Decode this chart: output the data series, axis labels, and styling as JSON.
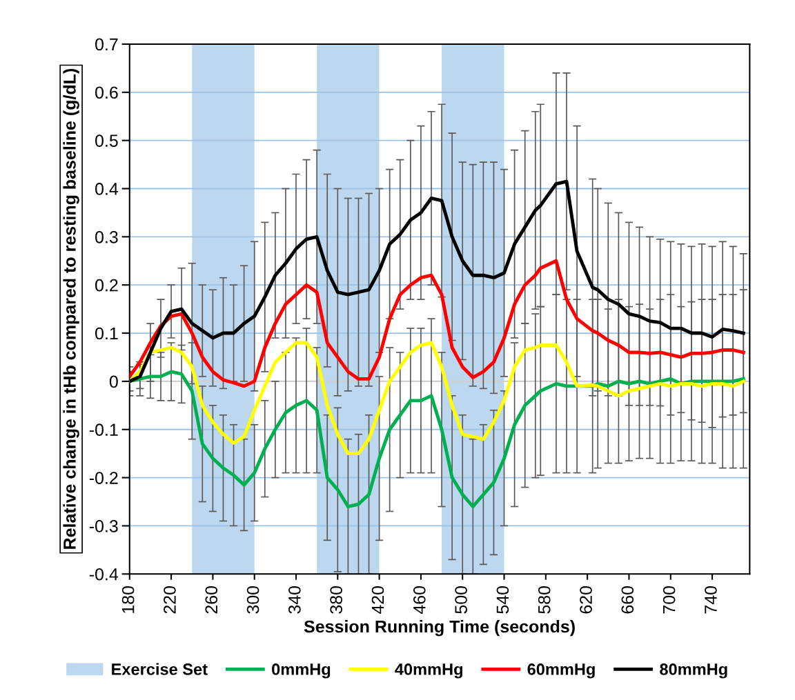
{
  "chart_data": {
    "type": "line",
    "xlabel": "Session Running Time (seconds)",
    "ylabel": "Relative change in tHb compared to resting baseline (g/dL)",
    "x": [
      180,
      190,
      200,
      210,
      220,
      230,
      240,
      250,
      260,
      270,
      280,
      290,
      300,
      310,
      320,
      330,
      340,
      350,
      360,
      370,
      380,
      390,
      400,
      410,
      420,
      430,
      440,
      450,
      460,
      470,
      480,
      490,
      500,
      510,
      520,
      530,
      540,
      550,
      560,
      570,
      575,
      590,
      600,
      610,
      625,
      630,
      640,
      650,
      660,
      670,
      680,
      690,
      700,
      710,
      720,
      730,
      740,
      750,
      760,
      770
    ],
    "xlim": [
      180,
      776
    ],
    "xticks": [
      180,
      220,
      260,
      300,
      340,
      380,
      420,
      460,
      500,
      540,
      580,
      620,
      660,
      700,
      740
    ],
    "ylim": [
      -0.4,
      0.7
    ],
    "yticks": [
      {
        "value": -0.4,
        "label": "-0.4"
      },
      {
        "value": -0.3,
        "label": "-0.3"
      },
      {
        "value": -0.2,
        "label": "-0.2"
      },
      {
        "value": -0.1,
        "label": "-0.1"
      },
      0,
      0.1,
      0.2,
      0.3,
      0.4,
      0.5,
      0.6,
      0.7
    ],
    "grid": "y",
    "legend": "bottom",
    "marker": "none",
    "line_style": "solid",
    "bands": [
      {
        "axis": "x",
        "from": 240,
        "to": 300,
        "label": "Exercise Set",
        "color": "#bdd7ee"
      },
      {
        "axis": "x",
        "from": 360,
        "to": 420,
        "color": "#bdd7ee"
      },
      {
        "axis": "x",
        "from": 480,
        "to": 540,
        "color": "#bdd7ee"
      }
    ],
    "series": [
      {
        "name": "0mmHg",
        "color": "#00b050",
        "values": [
          0.0,
          0.005,
          0.01,
          0.01,
          0.02,
          0.015,
          -0.02,
          -0.13,
          -0.16,
          -0.18,
          -0.195,
          -0.215,
          -0.19,
          -0.14,
          -0.1,
          -0.065,
          -0.05,
          -0.04,
          -0.06,
          -0.2,
          -0.225,
          -0.26,
          -0.255,
          -0.235,
          -0.16,
          -0.1,
          -0.07,
          -0.04,
          -0.04,
          -0.03,
          -0.1,
          -0.2,
          -0.235,
          -0.26,
          -0.235,
          -0.21,
          -0.16,
          -0.09,
          -0.05,
          -0.03,
          -0.02,
          -0.005,
          -0.01,
          -0.01,
          -0.01,
          -0.005,
          -0.01,
          0.0,
          -0.005,
          0.0,
          -0.005,
          0.0,
          0.005,
          -0.005,
          0.0,
          0.0,
          0.0,
          0.0,
          0.0,
          0.005
        ],
        "errors": [
          0.03,
          0.035,
          0.045,
          0.05,
          0.06,
          0.06,
          0.1,
          0.12,
          0.11,
          0.11,
          0.105,
          0.095,
          0.1,
          0.1,
          0.1,
          0.125,
          0.14,
          0.15,
          0.13,
          0.13,
          0.17,
          0.14,
          0.145,
          0.165,
          0.17,
          0.17,
          0.13,
          0.15,
          0.15,
          0.16,
          0.16,
          0.17,
          0.165,
          0.14,
          0.145,
          0.15,
          0.14,
          0.17,
          0.17,
          0.17,
          0.175,
          0.185,
          0.18,
          0.18,
          0.18,
          0.175,
          0.16,
          0.17,
          0.16,
          0.16,
          0.155,
          0.17,
          0.175,
          0.16,
          0.165,
          0.17,
          0.17,
          0.18,
          0.18,
          0.185
        ]
      },
      {
        "name": "40mmHg",
        "color": "#ffff00",
        "values": [
          0.0,
          0.02,
          0.06,
          0.065,
          0.07,
          0.06,
          0.03,
          -0.05,
          -0.085,
          -0.11,
          -0.128,
          -0.115,
          -0.06,
          -0.01,
          0.04,
          0.06,
          0.08,
          0.08,
          0.05,
          -0.05,
          -0.11,
          -0.15,
          -0.15,
          -0.12,
          -0.06,
          0.0,
          0.03,
          0.06,
          0.075,
          0.08,
          0.03,
          -0.05,
          -0.11,
          -0.115,
          -0.12,
          -0.085,
          -0.04,
          0.03,
          0.065,
          0.07,
          0.075,
          0.075,
          0.04,
          -0.01,
          -0.008,
          -0.01,
          -0.02,
          -0.03,
          -0.02,
          -0.015,
          -0.01,
          -0.005,
          -0.01,
          -0.005,
          -0.005,
          -0.01,
          -0.005,
          -0.005,
          -0.01,
          0.0
        ]
      },
      {
        "name": "60mmHg",
        "color": "#ff0000",
        "values": [
          0.01,
          0.04,
          0.08,
          0.115,
          0.135,
          0.14,
          0.1,
          0.05,
          0.02,
          0.003,
          -0.003,
          -0.01,
          0.0,
          0.07,
          0.12,
          0.16,
          0.18,
          0.2,
          0.185,
          0.08,
          0.05,
          0.02,
          0.005,
          0.005,
          0.05,
          0.13,
          0.18,
          0.2,
          0.215,
          0.22,
          0.18,
          0.07,
          0.03,
          0.008,
          0.02,
          0.04,
          0.09,
          0.16,
          0.2,
          0.22,
          0.235,
          0.25,
          0.17,
          0.13,
          0.105,
          0.1,
          0.085,
          0.075,
          0.06,
          0.06,
          0.058,
          0.06,
          0.055,
          0.05,
          0.058,
          0.058,
          0.06,
          0.065,
          0.065,
          0.06
        ]
      },
      {
        "name": "80mmHg",
        "color": "#000000",
        "values": [
          0.0,
          0.01,
          0.06,
          0.11,
          0.145,
          0.15,
          0.12,
          0.105,
          0.09,
          0.1,
          0.1,
          0.12,
          0.135,
          0.175,
          0.22,
          0.245,
          0.275,
          0.295,
          0.3,
          0.23,
          0.185,
          0.18,
          0.185,
          0.19,
          0.23,
          0.285,
          0.305,
          0.335,
          0.35,
          0.38,
          0.375,
          0.3,
          0.25,
          0.22,
          0.22,
          0.215,
          0.225,
          0.285,
          0.32,
          0.355,
          0.365,
          0.41,
          0.415,
          0.27,
          0.195,
          0.19,
          0.17,
          0.16,
          0.14,
          0.135,
          0.125,
          0.122,
          0.11,
          0.11,
          0.1,
          0.1,
          0.092,
          0.108,
          0.105,
          0.1
        ],
        "errors": [
          0.02,
          0.025,
          0.06,
          0.06,
          0.055,
          0.085,
          0.125,
          0.095,
          0.1,
          0.115,
          0.1,
          0.12,
          0.155,
          0.155,
          0.13,
          0.155,
          0.155,
          0.165,
          0.18,
          0.2,
          0.215,
          0.2,
          0.195,
          0.2,
          0.17,
          0.155,
          0.155,
          0.165,
          0.18,
          0.18,
          0.2,
          0.215,
          0.205,
          0.23,
          0.235,
          0.24,
          0.215,
          0.195,
          0.2,
          0.205,
          0.21,
          0.23,
          0.225,
          0.26,
          0.225,
          0.21,
          0.2,
          0.19,
          0.19,
          0.185,
          0.175,
          0.173,
          0.18,
          0.175,
          0.18,
          0.185,
          0.188,
          0.182,
          0.175,
          0.165
        ]
      }
    ]
  }
}
